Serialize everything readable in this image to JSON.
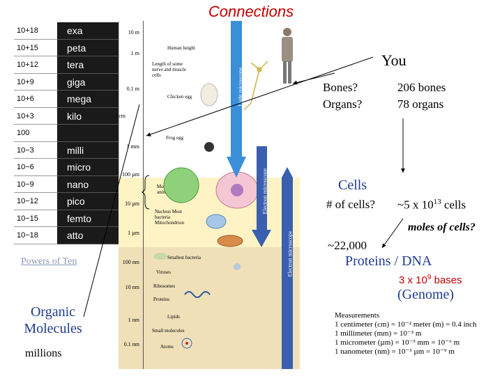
{
  "title": "Connections",
  "prefixes": [
    {
      "exp": "10+18",
      "name": "exa"
    },
    {
      "exp": "10+15",
      "name": "peta"
    },
    {
      "exp": "10+12",
      "name": "tera"
    },
    {
      "exp": "10+9",
      "name": "giga"
    },
    {
      "exp": "10+6",
      "name": "mega"
    },
    {
      "exp": "10+3",
      "name": "kilo"
    },
    {
      "exp": "100",
      "name": ""
    },
    {
      "exp": "10−3",
      "name": "milli"
    },
    {
      "exp": "10−6",
      "name": "micro"
    },
    {
      "exp": "10−9",
      "name": "nano"
    },
    {
      "exp": "10−12",
      "name": "pico"
    },
    {
      "exp": "10−15",
      "name": "femto"
    },
    {
      "exp": "10−18",
      "name": "atto"
    }
  ],
  "scale_labels": [
    "10 m",
    "1 m",
    "0.1 m",
    "1 cm",
    "1 mm",
    "100 µm",
    "10 µm",
    "1 µm",
    "100 nm",
    "10 nm",
    "1 nm",
    "0.1 nm"
  ],
  "scale_items": [
    "Human height",
    "Length of some nerve and muscle cells",
    "Chicken egg",
    "Frog egg",
    "Most plant and animal cells",
    "Nucleus Most bacteria Mitochondrion",
    "Smallest bacteria",
    "Viruses",
    "Ribosomes",
    "Proteins",
    "Lipids",
    "Small molecules",
    "Atoms"
  ],
  "microscopes": {
    "light": "Light microscope",
    "electron1": "Electron microscope",
    "electron2": "Electron microscope"
  },
  "left_texts": {
    "powers": "Powers of Ten",
    "organic_line1": "Organic",
    "organic_line2": "Molecules",
    "millions": "millions"
  },
  "right": {
    "you": "You",
    "bones_q": "Bones?",
    "organs_q": "Organs?",
    "bones_n": "206 bones",
    "organs_n": "78 organs",
    "cells": "Cells",
    "num_cells_q": "# of cells?",
    "num_cells_a": "~5 x 10",
    "num_cells_exp": "13",
    "num_cells_unit": " cells",
    "moles": "moles of cells?",
    "approx": "~22,000",
    "proteins_dna": "Proteins / DNA",
    "bases": "3 x 10",
    "bases_exp": "9",
    "bases_unit": " bases",
    "genome": "(Genome)"
  },
  "measurements": {
    "title": "Measurements",
    "lines": [
      "1 centimeter (cm) = 10⁻² meter (m) = 0.4 inch",
      "1 millimeter (mm) = 10⁻³ m",
      "1 micrometer (µm) = 10⁻³ mm = 10⁻⁶ m",
      "1 nanometer (nm) = 10⁻³ µm = 10⁻⁹ m"
    ]
  },
  "colors": {
    "accent_red": "#c00000",
    "light_scope": "#3a8fd8",
    "electron_scope": "#3a5fb0",
    "band_yellow": "#fdf3c4",
    "band_tan": "#efe0b8"
  }
}
